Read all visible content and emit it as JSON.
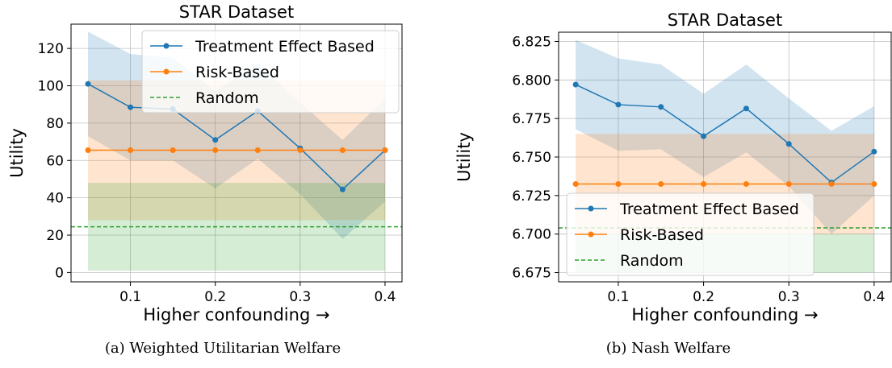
{
  "chart_data": [
    {
      "type": "line",
      "title": "STAR Dataset",
      "xlabel": "Higher confounding →",
      "ylabel": "Utility",
      "caption": "(a) Weighted Utilitarian Welfare",
      "xlim": [
        0.03,
        0.42
      ],
      "ylim": [
        -5,
        133
      ],
      "xticks": [
        0.1,
        0.2,
        0.3,
        0.4
      ],
      "xtick_labels": [
        "0.1",
        "0.2",
        "0.3",
        "0.4"
      ],
      "yticks": [
        0,
        20,
        40,
        60,
        80,
        100,
        120
      ],
      "ytick_labels": [
        "0",
        "20",
        "40",
        "60",
        "80",
        "100",
        "120"
      ],
      "grid": true,
      "legend_position": "top-right",
      "x": [
        0.05,
        0.1,
        0.15,
        0.2,
        0.25,
        0.3,
        0.35,
        0.4
      ],
      "series": [
        {
          "name": "Treatment Effect Based",
          "kind": "line-markers",
          "color": "#1f77b4",
          "values": [
            101,
            88.5,
            87.5,
            71,
            86.5,
            66.5,
            44.5,
            65.5
          ],
          "band_low": [
            73,
            60,
            60,
            45,
            61,
            42,
            18,
            38
          ],
          "band_high": [
            129,
            117,
            115,
            97,
            112,
            91,
            71,
            93
          ]
        },
        {
          "name": "Risk-Based",
          "kind": "line-markers",
          "color": "#ff7f0e",
          "values": [
            65.5,
            65.5,
            65.5,
            65.5,
            65.5,
            65.5,
            65.5,
            65.5
          ],
          "band_low": [
            28,
            28,
            28,
            28,
            28,
            28,
            28,
            28
          ],
          "band_high": [
            103,
            103,
            103,
            103,
            103,
            103,
            103,
            103
          ]
        },
        {
          "name": "Random",
          "kind": "dashed-hline",
          "color": "#2ca02c",
          "value": 24.5,
          "band_low": 1,
          "band_high": 48
        }
      ]
    },
    {
      "type": "line",
      "title": "STAR Dataset",
      "xlabel": "Higher confounding →",
      "ylabel": "Utility",
      "caption": "(b) Nash Welfare",
      "xlim": [
        0.03,
        0.42
      ],
      "ylim": [
        6.669,
        6.831
      ],
      "xticks": [
        0.1,
        0.2,
        0.3,
        0.4
      ],
      "xtick_labels": [
        "0.1",
        "0.2",
        "0.3",
        "0.4"
      ],
      "yticks": [
        6.675,
        6.7,
        6.725,
        6.75,
        6.775,
        6.8,
        6.825
      ],
      "ytick_labels": [
        "6.675",
        "6.700",
        "6.725",
        "6.750",
        "6.775",
        "6.800",
        "6.825"
      ],
      "grid": true,
      "legend_position": "lower-left",
      "x": [
        0.05,
        0.1,
        0.15,
        0.2,
        0.25,
        0.3,
        0.35,
        0.4
      ],
      "series": [
        {
          "name": "Treatment Effect Based",
          "kind": "line-markers",
          "color": "#1f77b4",
          "values": [
            6.797,
            6.784,
            6.7825,
            6.7635,
            6.7815,
            6.7585,
            6.7335,
            6.7535
          ],
          "band_low": [
            6.768,
            6.754,
            6.755,
            6.737,
            6.753,
            6.731,
            6.7,
            6.725
          ],
          "band_high": [
            6.826,
            6.814,
            6.81,
            6.791,
            6.81,
            6.788,
            6.767,
            6.783
          ]
        },
        {
          "name": "Risk-Based",
          "kind": "line-markers",
          "color": "#ff7f0e",
          "values": [
            6.7325,
            6.7325,
            6.7325,
            6.7325,
            6.7325,
            6.7325,
            6.7325,
            6.7325
          ],
          "band_low": [
            6.7,
            6.7,
            6.7,
            6.7,
            6.7,
            6.7,
            6.7,
            6.7
          ],
          "band_high": [
            6.765,
            6.765,
            6.765,
            6.765,
            6.765,
            6.765,
            6.765,
            6.765
          ]
        },
        {
          "name": "Random",
          "kind": "dashed-hline",
          "color": "#2ca02c",
          "value": 6.704,
          "band_low": 6.675,
          "band_high": 6.7
        }
      ]
    }
  ]
}
